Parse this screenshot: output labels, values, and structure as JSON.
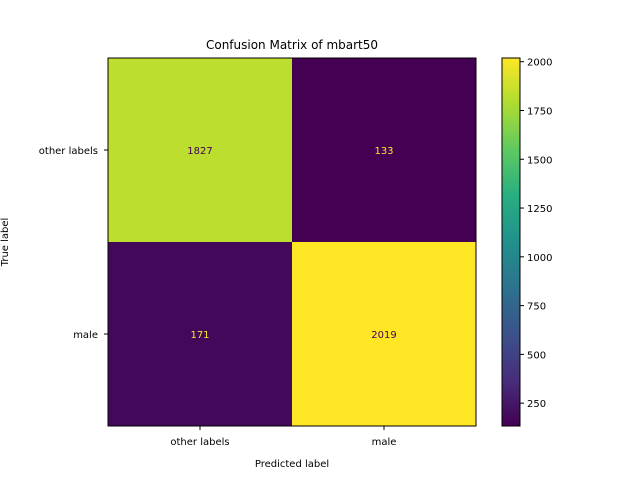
{
  "chart_data": {
    "type": "heatmap",
    "title": "Confusion Matrix of mbart50",
    "xlabel": "Predicted label",
    "ylabel": "True label",
    "x_categories": [
      "other labels",
      "male"
    ],
    "y_categories": [
      "other labels",
      "male"
    ],
    "values": [
      [
        1827,
        133
      ],
      [
        171,
        2019
      ]
    ],
    "colormap": "viridis",
    "colorbar": {
      "range": [
        133,
        2019
      ],
      "ticks": [
        250,
        500,
        750,
        1000,
        1250,
        1500,
        1750,
        2000
      ],
      "tick_labels": [
        "250",
        "500",
        "750",
        "1000",
        "1250",
        "1500",
        "1750",
        "2000"
      ]
    },
    "cell_text_colors": {
      "dark_cell": "#fde725",
      "light_cell": "#440154"
    }
  }
}
